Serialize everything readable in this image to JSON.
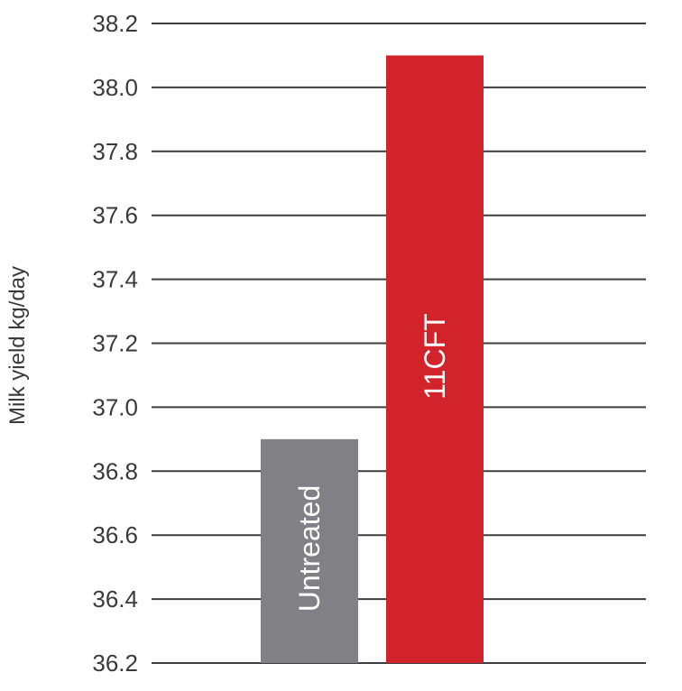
{
  "chart_data": {
    "type": "bar",
    "categories": [
      "Untreated",
      "11CFT"
    ],
    "values": [
      36.9,
      38.1
    ],
    "colors": [
      "#818185",
      "#d2222a"
    ],
    "ylabel": "Milk yield kg/day",
    "ylim": [
      36.2,
      38.2
    ],
    "yticks": [
      36.2,
      36.4,
      36.6,
      36.8,
      37.0,
      37.2,
      37.4,
      37.6,
      37.8,
      38.0,
      38.2
    ],
    "ytick_labels": [
      "36.2",
      "36.4",
      "36.6",
      "36.8",
      "37.0",
      "37.2",
      "37.4",
      "37.6",
      "37.8",
      "38.0",
      "38.2"
    ],
    "grid": true,
    "bar_labels": "inside-rotated"
  }
}
